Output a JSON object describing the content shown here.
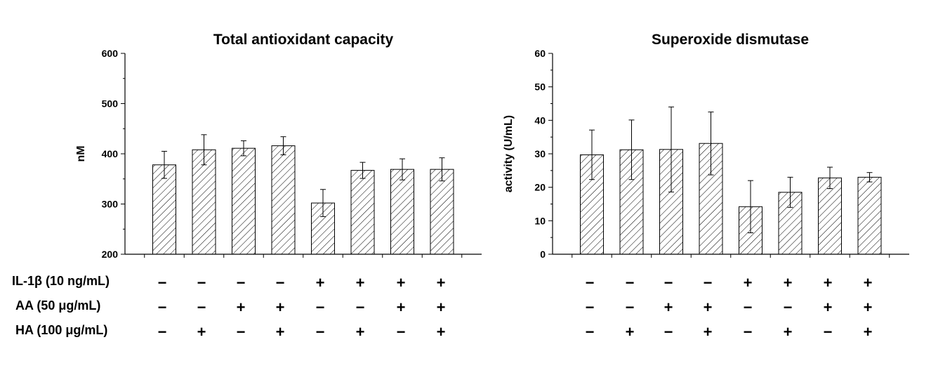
{
  "conditions": {
    "labels": [
      "IL-1β (10 ng/mL)",
      "AA (50 μg/mL)",
      "HA (100 μg/mL)"
    ],
    "rows": [
      [
        "−",
        "−",
        "−",
        "−",
        "+",
        "+",
        "+",
        "+"
      ],
      [
        "−",
        "−",
        "+",
        "+",
        "−",
        "−",
        "+",
        "+"
      ],
      [
        "−",
        "+",
        "−",
        "+",
        "−",
        "+",
        "−",
        "+"
      ]
    ]
  },
  "chart_data": [
    {
      "type": "bar",
      "title": "Total antioxidant capacity",
      "xlabel": "",
      "ylabel": "nM",
      "ylim": [
        200,
        600
      ],
      "yticks": [
        200,
        300,
        400,
        500,
        600
      ],
      "values": [
        378,
        408,
        411,
        416,
        302,
        367,
        369,
        369
      ],
      "errors": [
        27,
        30,
        15,
        18,
        27,
        16,
        21,
        23
      ],
      "pattern": "diagonal-hatch",
      "grid": false
    },
    {
      "type": "bar",
      "title": "Superoxide dismutase",
      "xlabel": "",
      "ylabel": "activity (U/mL)",
      "ylim": [
        0,
        60
      ],
      "yticks": [
        0,
        10,
        20,
        30,
        40,
        50,
        60
      ],
      "values": [
        29.7,
        31.2,
        31.3,
        33.1,
        14.2,
        18.5,
        22.8,
        23.0
      ],
      "errors": [
        7.4,
        8.9,
        12.7,
        9.4,
        7.8,
        4.5,
        3.2,
        1.4
      ],
      "pattern": "diagonal-hatch",
      "grid": false
    }
  ]
}
